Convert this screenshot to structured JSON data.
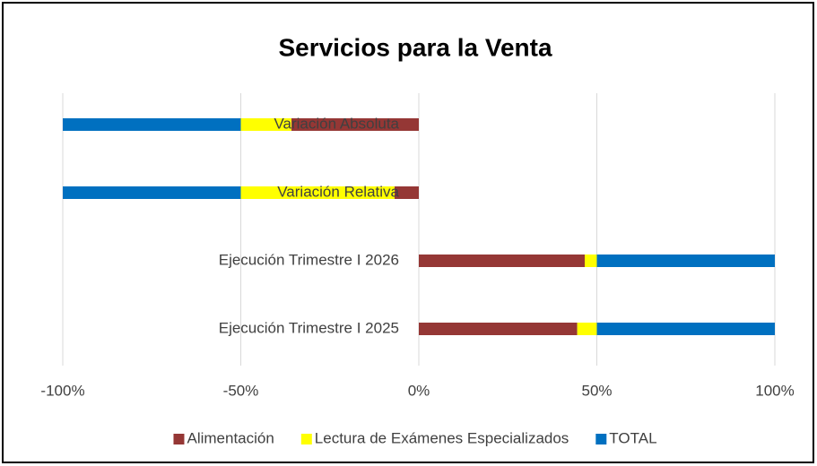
{
  "chart_data": {
    "type": "stacked_hbar",
    "title": "Servicios para la Venta",
    "categories": [
      "Variación Absoluta",
      "Variación Relativa",
      "Ejecución Trimestre I 2026",
      "Ejecución Trimestre I 2025"
    ],
    "series": [
      {
        "name": "Alimentación",
        "color": "#953735",
        "values": [
          -35.8,
          -6.8,
          46.6,
          44.5
        ]
      },
      {
        "name": "Lectura de Exámenes Especializados",
        "color": "#ffff00",
        "values": [
          -14.2,
          -43.2,
          3.4,
          5.5
        ]
      },
      {
        "name": "TOTAL",
        "color": "#0070c0",
        "values": [
          -50,
          -50,
          50,
          50
        ]
      }
    ],
    "xlim": [
      -100,
      100
    ],
    "xticks": [
      {
        "value": -100,
        "label": "-100%"
      },
      {
        "value": -50,
        "label": "-50%"
      },
      {
        "value": 0,
        "label": "0%"
      },
      {
        "value": 50,
        "label": "50%"
      },
      {
        "value": 100,
        "label": "100%"
      }
    ],
    "grid": true,
    "legend": "bottom"
  }
}
